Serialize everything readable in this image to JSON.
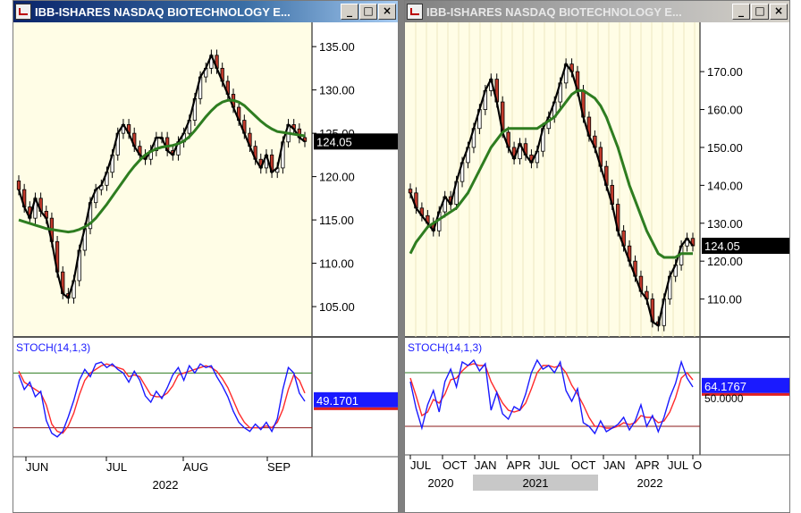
{
  "windows": [
    {
      "title": "IBB-ISHARES NASDAQ BIOTECHNOLOGY E...",
      "state": "active",
      "buttons": [
        "_",
        "□",
        "×"
      ],
      "last_price_label": "124.05",
      "stoch_label": "STOCH(14,1,3)",
      "stoch_value_label": "49.1701",
      "chart_data": {
        "type": "candlestick",
        "symbol": "IBB",
        "price_axis": {
          "ticks": [
            105,
            110,
            115,
            120,
            125,
            130,
            135
          ],
          "tick_labels": [
            "105.00",
            "110.00",
            "115.00",
            "120.00",
            "125.00",
            "130.00",
            "135.00"
          ],
          "range": [
            101.5,
            137.8
          ]
        },
        "last_price": 124.05,
        "moving_average_color": "#2e7d20",
        "close_line_color": "#000000",
        "up_candle_color": "#ffffff",
        "down_candle_color": "#c0392b",
        "close": [
          118.5,
          116.5,
          115.2,
          117.5,
          116.0,
          115.2,
          112.5,
          109.0,
          106.5,
          106.0,
          108.0,
          111.5,
          114.0,
          117.0,
          118.5,
          119.0,
          120.5,
          122.5,
          125.0,
          126.0,
          125.0,
          123.5,
          122.5,
          122.0,
          123.0,
          124.5,
          124.5,
          123.0,
          122.5,
          124.0,
          125.0,
          126.5,
          129.0,
          131.5,
          132.5,
          134.0,
          132.5,
          131.0,
          129.5,
          128.0,
          126.5,
          125.0,
          123.5,
          122.0,
          121.0,
          122.5,
          120.5,
          121.0,
          124.0,
          126.0,
          125.5,
          124.5,
          124.05
        ],
        "moving_average": [
          115,
          114.8,
          114.6,
          114.4,
          114.2,
          114.0,
          113.9,
          113.8,
          113.7,
          113.6,
          113.7,
          113.9,
          114.2,
          114.6,
          115.2,
          116.0,
          116.8,
          117.7,
          118.6,
          119.5,
          120.4,
          121.2,
          121.9,
          122.5,
          122.9,
          123.2,
          123.4,
          123.5,
          123.6,
          123.8,
          124.1,
          124.6,
          125.3,
          126.1,
          126.9,
          127.6,
          128.2,
          128.6,
          128.8,
          128.8,
          128.6,
          128.2,
          127.6,
          127.0,
          126.4,
          125.9,
          125.5,
          125.2,
          125.1,
          125.0,
          124.9,
          124.8,
          124.7
        ],
        "stochastic": {
          "label": "STOCH(14,1,3)",
          "last_value": 49.1701,
          "reference_lines": [
            80,
            20
          ],
          "range": [
            0,
            100
          ],
          "k_color": "#1a1aff",
          "d_color": "#ff2a2a",
          "k": [
            78,
            62,
            70,
            54,
            60,
            28,
            14,
            10,
            16,
            32,
            50,
            72,
            84,
            76,
            90,
            92,
            86,
            90,
            84,
            80,
            70,
            82,
            72,
            55,
            48,
            60,
            52,
            64,
            78,
            86,
            72,
            88,
            80,
            90,
            86,
            88,
            76,
            66,
            54,
            38,
            26,
            20,
            16,
            24,
            18,
            26,
            16,
            30,
            62,
            86,
            80,
            58,
            49
          ],
          "d": [
            82,
            70,
            66,
            62,
            58,
            45,
            24,
            16,
            14,
            22,
            36,
            56,
            72,
            80,
            84,
            88,
            90,
            88,
            86,
            84,
            76,
            78,
            76,
            66,
            56,
            54,
            54,
            58,
            66,
            78,
            80,
            82,
            84,
            86,
            88,
            86,
            82,
            74,
            64,
            50,
            36,
            26,
            20,
            20,
            20,
            22,
            20,
            26,
            40,
            62,
            78,
            72,
            58
          ]
        },
        "x_axis": {
          "month_labels": [
            "JUN",
            "JUL",
            "AUG",
            "SEP"
          ],
          "year_label": "2022"
        }
      }
    },
    {
      "title": "IBB-ISHARES NASDAQ BIOTECHNOLOGY E...",
      "state": "inactive",
      "buttons": [
        "_",
        "□",
        "×"
      ],
      "last_price_label": "124.05",
      "stoch_label": "STOCH(14,1,3)",
      "stoch_value_label": "64.1767",
      "stoch_ref_label": "50.0000",
      "chart_data": {
        "type": "candlestick",
        "symbol": "IBB",
        "price_axis": {
          "ticks": [
            110,
            120,
            130,
            140,
            150,
            160,
            170
          ],
          "tick_labels": [
            "110.00",
            "120.00",
            "130.00",
            "140.00",
            "150.00",
            "160.00",
            "170.00"
          ],
          "range": [
            100,
            183
          ]
        },
        "last_price": 124.05,
        "moving_average_color": "#2e7d20",
        "close_line_color": "#000000",
        "up_candle_color": "#ffffff",
        "down_candle_color": "#c0392b",
        "close": [
          138,
          134,
          132,
          130,
          128,
          133,
          137,
          135,
          141,
          146,
          150,
          155,
          160,
          165,
          168,
          162,
          154,
          150,
          147,
          151,
          148,
          146,
          149,
          155,
          158,
          162,
          167,
          172,
          170,
          165,
          158,
          153,
          150,
          145,
          140,
          135,
          128,
          124,
          120,
          116,
          112,
          110,
          104,
          103,
          110,
          116,
          119,
          124,
          126,
          124.05
        ],
        "moving_average": [
          122,
          125,
          127,
          129,
          130,
          131,
          132,
          133,
          134,
          136,
          138,
          141,
          144,
          147,
          150,
          152,
          154,
          155,
          155,
          155,
          155,
          155,
          155,
          156,
          157,
          158,
          160,
          162,
          164,
          165,
          165,
          164,
          163,
          161,
          158,
          154,
          150,
          145,
          140,
          136,
          132,
          128,
          125,
          122,
          121,
          121,
          121,
          122,
          122,
          122
        ],
        "stochastic": {
          "label": "STOCH(14,1,3)",
          "last_value": 64.1767,
          "reference_lines": [
            80,
            20
          ],
          "range": [
            0,
            100
          ],
          "k_color": "#1a1aff",
          "d_color": "#ff2a2a",
          "k": [
            70,
            40,
            18,
            44,
            60,
            36,
            70,
            84,
            64,
            92,
            88,
            94,
            82,
            90,
            38,
            58,
            34,
            28,
            42,
            38,
            56,
            80,
            94,
            84,
            88,
            80,
            92,
            60,
            48,
            62,
            24,
            20,
            12,
            26,
            14,
            18,
            22,
            30,
            16,
            26,
            44,
            20,
            32,
            14,
            30,
            52,
            68,
            92,
            74,
            64
          ],
          "d": [
            74,
            54,
            32,
            36,
            50,
            46,
            56,
            72,
            74,
            82,
            88,
            90,
            88,
            88,
            70,
            58,
            46,
            38,
            36,
            38,
            46,
            62,
            80,
            88,
            88,
            86,
            88,
            80,
            66,
            56,
            44,
            30,
            20,
            20,
            18,
            18,
            20,
            24,
            22,
            24,
            32,
            30,
            30,
            24,
            26,
            36,
            52,
            74,
            80,
            72
          ]
        },
        "x_axis": {
          "month_labels": [
            "JUL",
            "OCT",
            "JAN",
            "APR",
            "JUL",
            "OCT",
            "JAN",
            "APR",
            "JUL",
            "O"
          ],
          "year_labels": [
            "2020",
            "2021",
            "2022"
          ]
        }
      }
    }
  ]
}
